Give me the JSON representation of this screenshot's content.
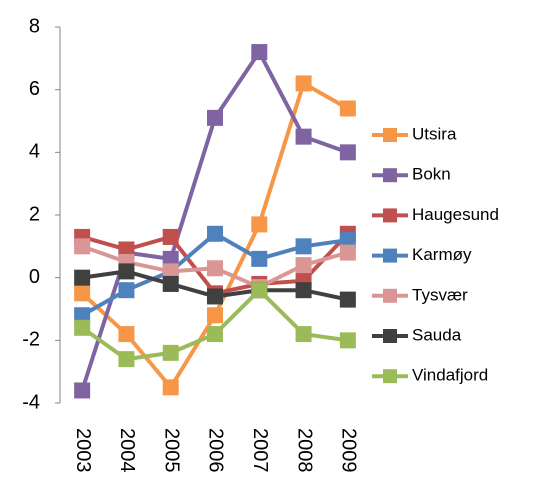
{
  "chart_data": {
    "type": "line",
    "categories": [
      "2003",
      "2004",
      "2005",
      "2006",
      "2007",
      "2008",
      "2009"
    ],
    "series": [
      {
        "name": "Utsira",
        "color": "#f79646",
        "values": [
          -0.5,
          -1.8,
          -3.5,
          -1.2,
          1.7,
          6.2,
          5.4
        ]
      },
      {
        "name": "Bokn",
        "color": "#8064a2",
        "values": [
          -3.6,
          0.8,
          0.6,
          5.1,
          7.2,
          4.5,
          4.0
        ]
      },
      {
        "name": "Haugesund",
        "color": "#c0504d",
        "values": [
          1.3,
          0.9,
          1.3,
          -0.5,
          -0.2,
          -0.1,
          1.4
        ]
      },
      {
        "name": "Karmøy",
        "color": "#4f81bd",
        "values": [
          -1.2,
          -0.4,
          0.2,
          1.4,
          0.6,
          1.0,
          1.2
        ]
      },
      {
        "name": "Tysvær",
        "color": "#d99694",
        "values": [
          1.0,
          0.5,
          0.2,
          0.3,
          -0.3,
          0.4,
          0.8
        ]
      },
      {
        "name": "Sauda",
        "color": "#404040",
        "values": [
          0.0,
          0.2,
          -0.2,
          -0.6,
          -0.4,
          -0.4,
          -0.7
        ]
      },
      {
        "name": "Vindafjord",
        "color": "#9bbb59",
        "values": [
          -1.6,
          -2.6,
          -2.4,
          -1.8,
          -0.4,
          -1.8,
          -2.0
        ]
      }
    ],
    "ylim": [
      -4,
      8
    ],
    "yticks": [
      -4,
      -2,
      0,
      2,
      4,
      6,
      8
    ],
    "legend": "right"
  }
}
